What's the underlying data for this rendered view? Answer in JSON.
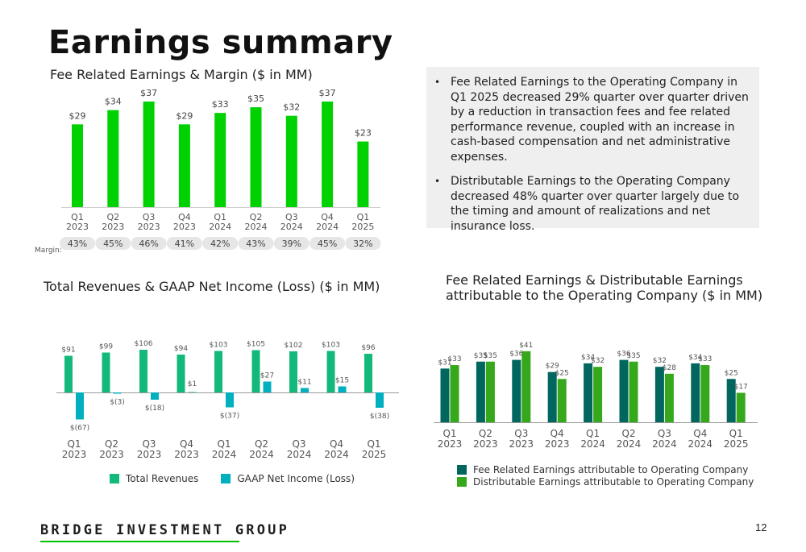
{
  "page": {
    "title": "Earnings summary",
    "number": "12",
    "footer_logo": "BRIDGE INVESTMENT GROUP"
  },
  "notes": {
    "bullets": [
      "Fee Related Earnings to the Operating Company in Q1 2025 decreased 29% quarter over quarter driven by a reduction in transaction fees and fee related performance revenue, coupled with an increase in cash-based compensation and net administrative expenses.",
      "Distributable Earnings to the Operating Company decreased 48% quarter over quarter largely due to the timing and amount of realizations and net insurance loss."
    ]
  },
  "colors": {
    "bright_green": "#00d100",
    "teal_green": "#12b97a",
    "cyan": "#00b0be",
    "dark_teal": "#00665e",
    "mid_green": "#35a81c",
    "pill": "#e6e6e6"
  },
  "chart_data": [
    {
      "type": "bar",
      "title": "Fee Related Earnings & Margin ($ in MM)",
      "categories": [
        "Q1 2023",
        "Q2 2023",
        "Q3 2023",
        "Q4 2023",
        "Q1 2024",
        "Q2 2024",
        "Q3 2024",
        "Q4 2024",
        "Q1 2025"
      ],
      "values": [
        29,
        34,
        37,
        29,
        33,
        35,
        32,
        37,
        23
      ],
      "value_labels": [
        "$29",
        "$34",
        "$37",
        "$29",
        "$33",
        "$35",
        "$32",
        "$37",
        "$23"
      ],
      "margin_label": "Margin:",
      "margins": [
        "43%",
        "45%",
        "46%",
        "41%",
        "42%",
        "43%",
        "39%",
        "45%",
        "32%"
      ],
      "ylim": [
        0,
        37
      ]
    },
    {
      "type": "bar",
      "title": "Total Revenues & GAAP Net Income (Loss) ($ in MM)",
      "categories": [
        "Q1 2023",
        "Q2 2023",
        "Q3 2023",
        "Q4 2023",
        "Q1 2024",
        "Q2 2024",
        "Q3 2024",
        "Q4 2024",
        "Q1 2025"
      ],
      "series": [
        {
          "name": "Total Revenues",
          "values": [
            91,
            99,
            106,
            94,
            103,
            105,
            102,
            103,
            96
          ],
          "labels": [
            "$91",
            "$99",
            "$106",
            "$94",
            "$103",
            "$105",
            "$102",
            "$103",
            "$96"
          ]
        },
        {
          "name": "GAAP Net Income (Loss)",
          "values": [
            -67,
            -3,
            -18,
            1,
            -37,
            27,
            11,
            15,
            -38
          ],
          "labels": [
            "$(67)",
            "$(3)",
            "$(18)",
            "$1",
            "$(37)",
            "$27",
            "$11",
            "$15",
            "$(38)"
          ]
        }
      ],
      "legend": "bottom"
    },
    {
      "type": "bar",
      "title": "Fee Related Earnings & Distributable Earnings attributable to the Operating Company ($ in MM)",
      "categories": [
        "Q1 2023",
        "Q2 2023",
        "Q3 2023",
        "Q4 2023",
        "Q1 2024",
        "Q2 2024",
        "Q3 2024",
        "Q4 2024",
        "Q1 2025"
      ],
      "series": [
        {
          "name": "Fee Related Earnings attributable to Operating Company",
          "values": [
            31,
            35,
            36,
            29,
            34,
            36,
            32,
            34,
            25
          ],
          "labels": [
            "$31",
            "$35",
            "$36",
            "$29",
            "$34",
            "$36",
            "$32",
            "$34",
            "$25"
          ]
        },
        {
          "name": "Distributable Earnings attributable to Operating Company",
          "values": [
            33,
            35,
            41,
            25,
            32,
            35,
            28,
            33,
            17
          ],
          "labels": [
            "$33",
            "$35",
            "$41",
            "$25",
            "$32",
            "$35",
            "$28",
            "$33",
            "$17"
          ]
        }
      ],
      "legend": "bottom"
    }
  ]
}
